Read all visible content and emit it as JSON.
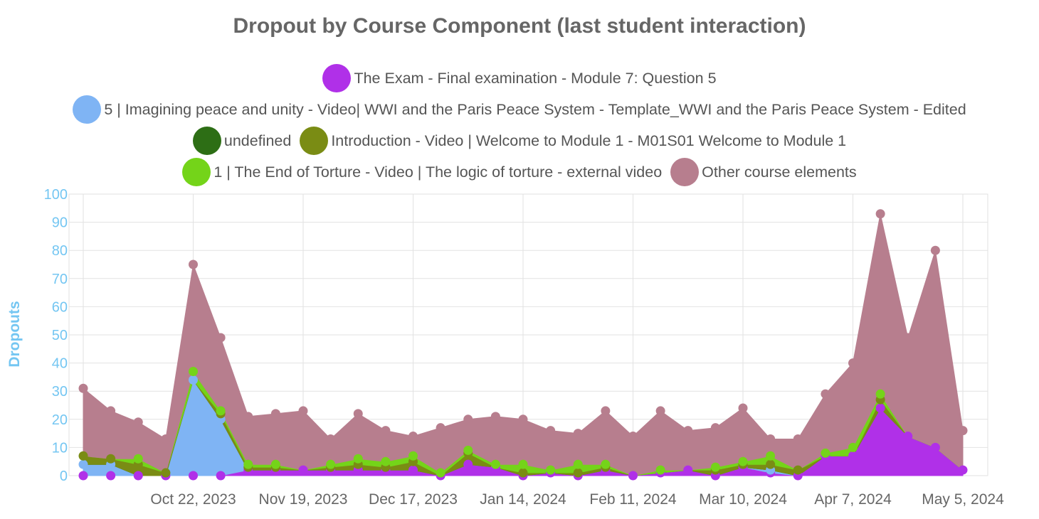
{
  "chart_data": {
    "type": "area",
    "stacked": true,
    "title": "Dropout by Course Component (last student interaction)",
    "ylabel": "Dropouts",
    "xlabel": "",
    "ylim": [
      0,
      100
    ],
    "y_ticks": [
      "0",
      "10",
      "20",
      "30",
      "40",
      "50",
      "60",
      "70",
      "80",
      "90",
      "100"
    ],
    "x_tick_labels": [
      "Oct 22, 2023",
      "Nov 19, 2023",
      "Dec 17, 2023",
      "Jan 14, 2024",
      "Feb 11, 2024",
      "Mar 10, 2024",
      "Apr 7, 2024",
      "May 5, 2024"
    ],
    "x": [
      "2023-09-24",
      "2023-10-01",
      "2023-10-08",
      "2023-10-15",
      "2023-10-22",
      "2023-10-29",
      "2023-11-05",
      "2023-11-12",
      "2023-11-19",
      "2023-11-26",
      "2023-12-03",
      "2023-12-10",
      "2023-12-17",
      "2023-12-24",
      "2023-12-31",
      "2024-01-07",
      "2024-01-14",
      "2024-01-21",
      "2024-01-28",
      "2024-02-04",
      "2024-02-11",
      "2024-02-18",
      "2024-02-25",
      "2024-03-03",
      "2024-03-10",
      "2024-03-17",
      "2024-03-24",
      "2024-03-31",
      "2024-04-07",
      "2024-04-14",
      "2024-04-21",
      "2024-04-28",
      "2024-05-05"
    ],
    "grid": true,
    "legend_position": "top",
    "series": [
      {
        "name": "The Exam - Final examination - Module 7: Question 5",
        "color": "#b030e8",
        "values": [
          0,
          0,
          0,
          0,
          0,
          0,
          2,
          2,
          2,
          2,
          2,
          2,
          2,
          0,
          4,
          3,
          0,
          1,
          0,
          2,
          0,
          1,
          2,
          0,
          3,
          1,
          0,
          7,
          7,
          24,
          14,
          10,
          2
        ]
      },
      {
        "name": "5 | Imagining peace and unity - Video| WWI and the Paris Peace System - Template_WWI and the Paris Peace System - Edited",
        "color": "#7fb4f4",
        "values": [
          4,
          4,
          0,
          0,
          34,
          20,
          0,
          0,
          0,
          0,
          0,
          0,
          0,
          0,
          0,
          0,
          0,
          0,
          0,
          0,
          0,
          0,
          0,
          0,
          0,
          1,
          0,
          0,
          0,
          0,
          0,
          0,
          0
        ]
      },
      {
        "name": "undefined",
        "color": "#2d6e15",
        "values": [
          0,
          0,
          0,
          0,
          0,
          0,
          0,
          0,
          0,
          0,
          0,
          0,
          0,
          0,
          0,
          0,
          0,
          0,
          0,
          0,
          0,
          0,
          0,
          0,
          0,
          0,
          0,
          0,
          0,
          0,
          0,
          0,
          0
        ]
      },
      {
        "name": "Introduction - Video | Welcome to Module 1 - M01S01 Welcome to Module 1",
        "color": "#7a8c14",
        "values": [
          3,
          2,
          4,
          1,
          0,
          2,
          1,
          1,
          0,
          1,
          2,
          1,
          3,
          0,
          4,
          0,
          1,
          0,
          1,
          1,
          0,
          0,
          0,
          2,
          1,
          2,
          2,
          0,
          0,
          3,
          0,
          0,
          0
        ]
      },
      {
        "name": "1 | The End of Torture - Video | The logic of torture - external video",
        "color": "#74d419",
        "values": [
          0,
          0,
          2,
          0,
          3,
          1,
          1,
          1,
          0,
          1,
          2,
          2,
          2,
          1,
          1,
          1,
          3,
          1,
          3,
          1,
          0,
          1,
          0,
          1,
          1,
          3,
          0,
          1,
          3,
          2,
          0,
          0,
          0
        ]
      },
      {
        "name": "Other course elements",
        "color": "#b77e8e",
        "values": [
          24,
          17,
          13,
          12,
          38,
          26,
          17,
          18,
          21,
          9,
          16,
          11,
          7,
          16,
          11,
          17,
          16,
          14,
          11,
          19,
          14,
          21,
          14,
          14,
          19,
          6,
          11,
          21,
          30,
          64,
          35,
          70,
          14
        ]
      }
    ]
  }
}
